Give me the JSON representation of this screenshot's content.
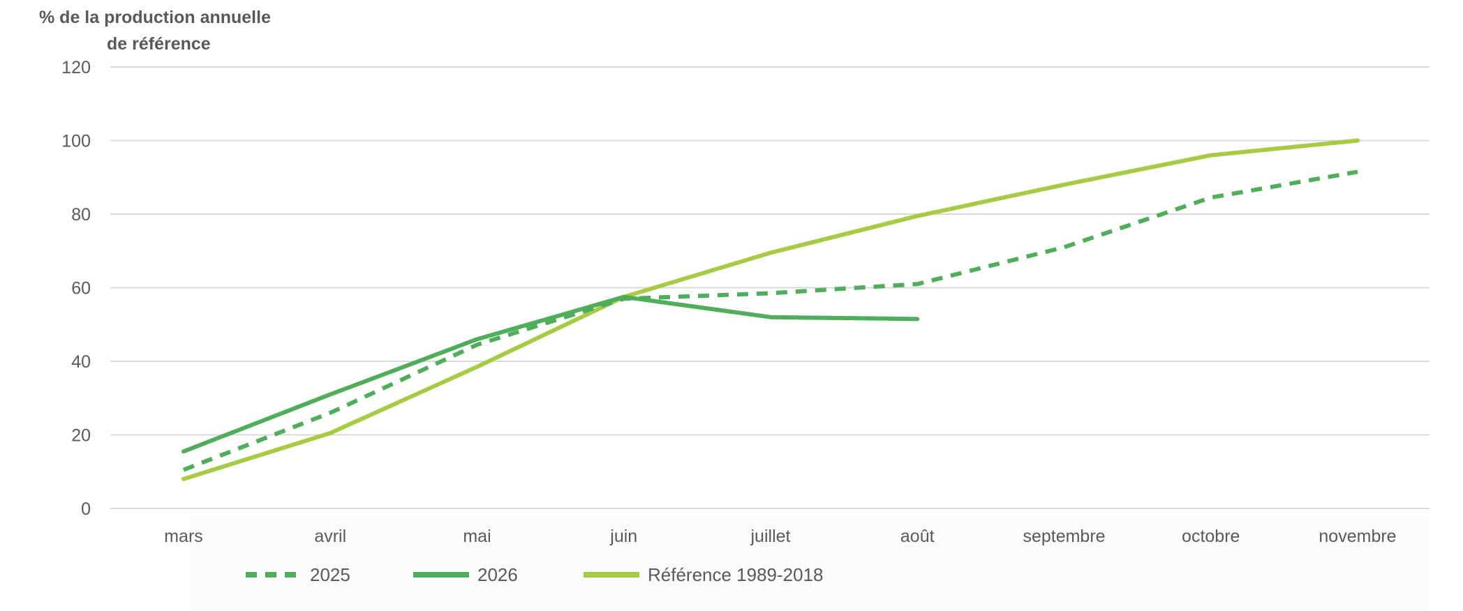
{
  "chart_data": {
    "type": "line",
    "ylabel_lines": [
      "% de  la production  annuelle",
      "de référence"
    ],
    "categories": [
      "mars",
      "avril",
      "mai",
      "juin",
      "juillet",
      "août",
      "septembre",
      "octobre",
      "novembre"
    ],
    "ylim": [
      0,
      120
    ],
    "yticks": [
      0,
      20,
      40,
      60,
      80,
      100,
      120
    ],
    "grid": true,
    "legend_position": "bottom",
    "series": [
      {
        "name": "2025",
        "color": "#4fad5b",
        "style": "dashed",
        "values": [
          10.5,
          26,
          44.5,
          57,
          58.5,
          61,
          71,
          84.5,
          91.5
        ]
      },
      {
        "name": "2026",
        "color": "#4fad5b",
        "style": "solid",
        "values": [
          15.5,
          31,
          46,
          57.5,
          52,
          51.5,
          null,
          null,
          null
        ]
      },
      {
        "name": "Référence 1989-2018",
        "color": "#a6cc45",
        "style": "solid",
        "values": [
          8,
          20.5,
          38.5,
          57.5,
          69.5,
          79.5,
          88,
          96,
          100
        ]
      }
    ]
  }
}
